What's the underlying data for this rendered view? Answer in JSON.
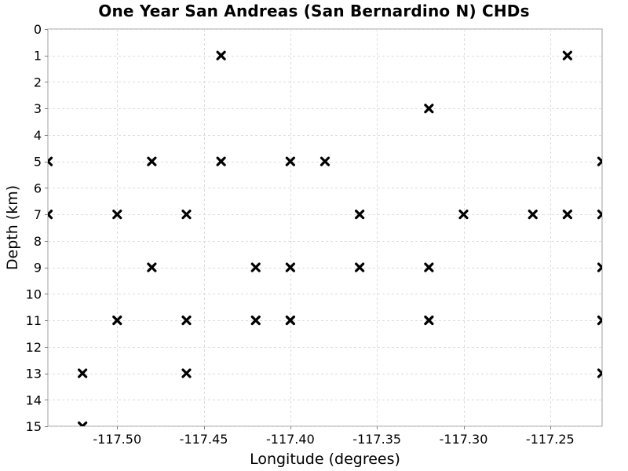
{
  "chart_data": {
    "type": "scatter",
    "title": "One Year San Andreas (San Bernardino N) CHDs",
    "xlabel": "Longitude (degrees)",
    "ylabel": "Depth (km)",
    "xlim": [
      -117.54,
      -117.22
    ],
    "ylim": [
      0,
      15
    ],
    "y_inverted": true,
    "grid": true,
    "x_ticks": [
      -117.5,
      -117.45,
      -117.4,
      -117.35,
      -117.3,
      -117.25
    ],
    "x_tick_labels": [
      "-117.50",
      "-117.45",
      "-117.40",
      "-117.35",
      "-117.30",
      "-117.25"
    ],
    "y_ticks": [
      0,
      1,
      2,
      3,
      4,
      5,
      6,
      7,
      8,
      9,
      10,
      11,
      12,
      13,
      14,
      15
    ],
    "y_tick_labels": [
      "0",
      "1",
      "2",
      "3",
      "4",
      "5",
      "6",
      "7",
      "8",
      "9",
      "10",
      "11",
      "12",
      "13",
      "14",
      "15"
    ],
    "marker": "x",
    "marker_color": "#000000",
    "points": [
      {
        "x": -117.44,
        "y": 1
      },
      {
        "x": -117.24,
        "y": 1
      },
      {
        "x": -117.32,
        "y": 3
      },
      {
        "x": -117.54,
        "y": 5
      },
      {
        "x": -117.48,
        "y": 5
      },
      {
        "x": -117.44,
        "y": 5
      },
      {
        "x": -117.4,
        "y": 5
      },
      {
        "x": -117.38,
        "y": 5
      },
      {
        "x": -117.22,
        "y": 5
      },
      {
        "x": -117.54,
        "y": 7
      },
      {
        "x": -117.5,
        "y": 7
      },
      {
        "x": -117.46,
        "y": 7
      },
      {
        "x": -117.36,
        "y": 7
      },
      {
        "x": -117.3,
        "y": 7
      },
      {
        "x": -117.26,
        "y": 7
      },
      {
        "x": -117.24,
        "y": 7
      },
      {
        "x": -117.22,
        "y": 7
      },
      {
        "x": -117.48,
        "y": 9
      },
      {
        "x": -117.42,
        "y": 9
      },
      {
        "x": -117.4,
        "y": 9
      },
      {
        "x": -117.36,
        "y": 9
      },
      {
        "x": -117.32,
        "y": 9
      },
      {
        "x": -117.22,
        "y": 9
      },
      {
        "x": -117.5,
        "y": 11
      },
      {
        "x": -117.46,
        "y": 11
      },
      {
        "x": -117.42,
        "y": 11
      },
      {
        "x": -117.4,
        "y": 11
      },
      {
        "x": -117.32,
        "y": 11
      },
      {
        "x": -117.22,
        "y": 11
      },
      {
        "x": -117.52,
        "y": 13
      },
      {
        "x": -117.46,
        "y": 13
      },
      {
        "x": -117.22,
        "y": 13
      },
      {
        "x": -117.52,
        "y": 15
      }
    ]
  }
}
